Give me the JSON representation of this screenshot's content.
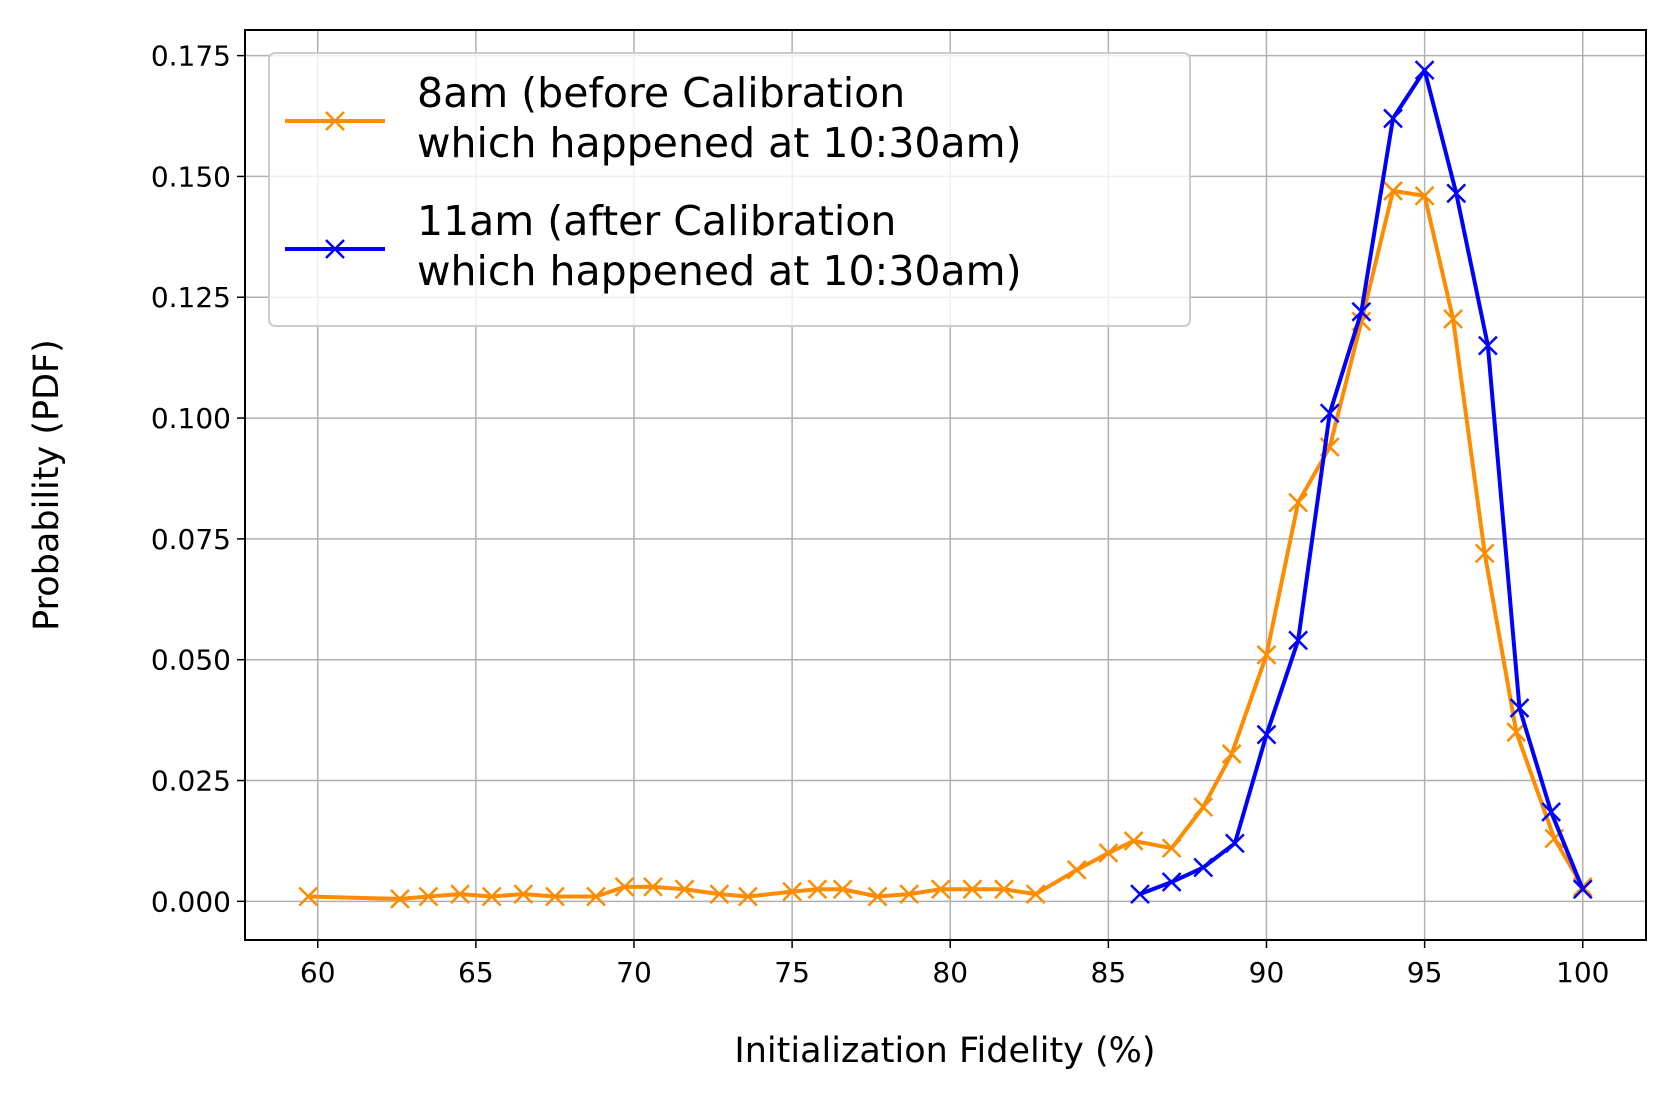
{
  "chart_data": {
    "type": "line",
    "xlabel": "Initialization Fidelity (%)",
    "ylabel": "Probability (PDF)",
    "xlim": [
      57.7,
      102.0
    ],
    "ylim": [
      -0.008,
      0.1803
    ],
    "xticks": [
      60,
      65,
      70,
      75,
      80,
      85,
      90,
      95,
      100
    ],
    "yticks": [
      {
        "value": 0,
        "label": "0.000"
      },
      {
        "value": 0.025,
        "label": "0.025"
      },
      {
        "value": 0.05,
        "label": "0.050"
      },
      {
        "value": 0.075,
        "label": "0.075"
      },
      {
        "value": 0.1,
        "label": "0.100"
      },
      {
        "value": 0.125,
        "label": "0.125"
      },
      {
        "value": 0.15,
        "label": "0.150"
      },
      {
        "value": 0.175,
        "label": "0.175"
      }
    ],
    "grid": true,
    "legend": "upper left",
    "series": [
      {
        "name": "8am (before Calibration\nwhich happened at 10:30am)",
        "color": "#ff8c00",
        "x": [
          59.7,
          62.6,
          63.5,
          64.5,
          65.5,
          66.5,
          67.5,
          68.8,
          69.7,
          70.6,
          71.6,
          72.7,
          73.6,
          75.0,
          75.8,
          76.6,
          77.7,
          78.7,
          79.7,
          80.7,
          81.7,
          82.7,
          84.0,
          85.0,
          85.8,
          87.0,
          88.0,
          88.9,
          90.0,
          91.0,
          92.0,
          93.0,
          94.0,
          95.0,
          95.9,
          96.9,
          97.9,
          99.1,
          100.0
        ],
        "values": [
          0.001,
          0.0005,
          0.001,
          0.0015,
          0.001,
          0.0015,
          0.001,
          0.001,
          0.003,
          0.003,
          0.0025,
          0.0015,
          0.001,
          0.002,
          0.0025,
          0.0025,
          0.001,
          0.0015,
          0.0025,
          0.0025,
          0.0025,
          0.0015,
          0.0065,
          0.01,
          0.0125,
          0.011,
          0.0195,
          0.0305,
          0.051,
          0.0825,
          0.094,
          0.12,
          0.147,
          0.146,
          0.1205,
          0.072,
          0.035,
          0.013,
          0.003
        ]
      },
      {
        "name": "11am (after Calibration\nwhich happened at 10:30am)",
        "color": "#0000ff",
        "x": [
          86,
          87,
          88,
          89,
          90,
          91,
          92,
          93,
          94,
          95,
          96,
          97,
          98,
          99,
          100
        ],
        "values": [
          0.0015,
          0.004,
          0.007,
          0.012,
          0.0345,
          0.054,
          0.101,
          0.122,
          0.162,
          0.172,
          0.1465,
          0.115,
          0.04,
          0.0185,
          0.0025
        ]
      }
    ]
  }
}
